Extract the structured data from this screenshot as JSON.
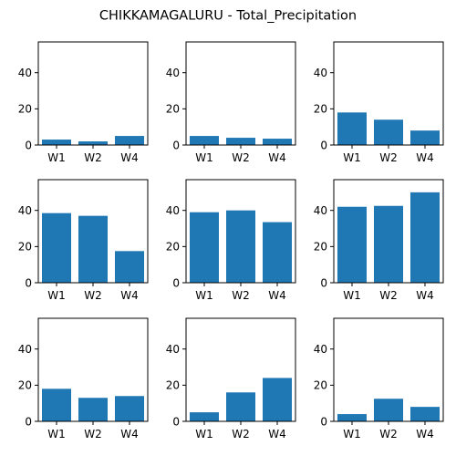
{
  "title": "CHIKKAMAGALURU - Total_Precipitation",
  "colors": {
    "bar": "#1f77b4",
    "axis": "#000000"
  },
  "chart_data": [
    {
      "type": "bar",
      "categories": [
        "W1",
        "W2",
        "W4"
      ],
      "values": [
        3.0,
        2.0,
        5.0
      ],
      "ylim": [
        0,
        57
      ],
      "yticks": [
        0,
        20,
        40
      ],
      "grid": false
    },
    {
      "type": "bar",
      "categories": [
        "W1",
        "W2",
        "W4"
      ],
      "values": [
        5.0,
        4.0,
        3.5
      ],
      "ylim": [
        0,
        57
      ],
      "yticks": [
        0,
        20,
        40
      ],
      "grid": false
    },
    {
      "type": "bar",
      "categories": [
        "W1",
        "W2",
        "W4"
      ],
      "values": [
        18.0,
        14.0,
        8.0
      ],
      "ylim": [
        0,
        57
      ],
      "yticks": [
        0,
        20,
        40
      ],
      "grid": false
    },
    {
      "type": "bar",
      "categories": [
        "W1",
        "W2",
        "W4"
      ],
      "values": [
        38.5,
        37.0,
        17.5
      ],
      "ylim": [
        0,
        57
      ],
      "yticks": [
        0,
        20,
        40
      ],
      "grid": false
    },
    {
      "type": "bar",
      "categories": [
        "W1",
        "W2",
        "W4"
      ],
      "values": [
        39.0,
        40.0,
        33.5
      ],
      "ylim": [
        0,
        57
      ],
      "yticks": [
        0,
        20,
        40
      ],
      "grid": false
    },
    {
      "type": "bar",
      "categories": [
        "W1",
        "W2",
        "W4"
      ],
      "values": [
        42.0,
        42.5,
        50.0
      ],
      "ylim": [
        0,
        57
      ],
      "yticks": [
        0,
        20,
        40
      ],
      "grid": false
    },
    {
      "type": "bar",
      "categories": [
        "W1",
        "W2",
        "W4"
      ],
      "values": [
        18.0,
        13.0,
        14.0
      ],
      "ylim": [
        0,
        57
      ],
      "yticks": [
        0,
        20,
        40
      ],
      "grid": false
    },
    {
      "type": "bar",
      "categories": [
        "W1",
        "W2",
        "W4"
      ],
      "values": [
        5.0,
        16.0,
        24.0
      ],
      "ylim": [
        0,
        57
      ],
      "yticks": [
        0,
        20,
        40
      ],
      "grid": false
    },
    {
      "type": "bar",
      "categories": [
        "W1",
        "W2",
        "W4"
      ],
      "values": [
        4.0,
        12.5,
        8.0
      ],
      "ylim": [
        0,
        57
      ],
      "yticks": [
        0,
        20,
        40
      ],
      "grid": false
    }
  ]
}
